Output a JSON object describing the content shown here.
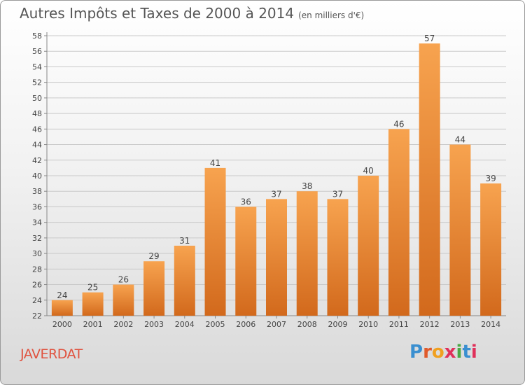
{
  "header": {
    "title": "Autres Impôts et Taxes de 2000 à 2014",
    "subtitle": "(en milliers d'€)"
  },
  "footer": {
    "city": "JAVERDAT",
    "logo": {
      "letters": [
        "P",
        "r",
        "o",
        "x",
        "i",
        "t",
        "i"
      ],
      "colors": [
        "#3a8fd0",
        "#e05a2b",
        "#f0a020",
        "#e0305a",
        "#4aa844",
        "#3a8fd0",
        "#e0305a"
      ]
    }
  },
  "chart_data": {
    "type": "bar",
    "categories": [
      "2000",
      "2001",
      "2002",
      "2003",
      "2004",
      "2005",
      "2006",
      "2007",
      "2008",
      "2009",
      "2010",
      "2011",
      "2012",
      "2013",
      "2014"
    ],
    "values": [
      24,
      25,
      26,
      29,
      31,
      41,
      36,
      37,
      38,
      37,
      40,
      46,
      57,
      44,
      39
    ],
    "ylim": [
      22,
      58
    ],
    "yticks": [
      22,
      24,
      26,
      28,
      30,
      32,
      34,
      36,
      38,
      40,
      42,
      44,
      46,
      48,
      50,
      52,
      54,
      56,
      58
    ],
    "grid": true,
    "colors": {
      "bar_top": "#f7a34f",
      "bar_bottom": "#d2691c",
      "grid": "#c9c9c9",
      "axis": "#888888",
      "text": "#444444"
    }
  }
}
